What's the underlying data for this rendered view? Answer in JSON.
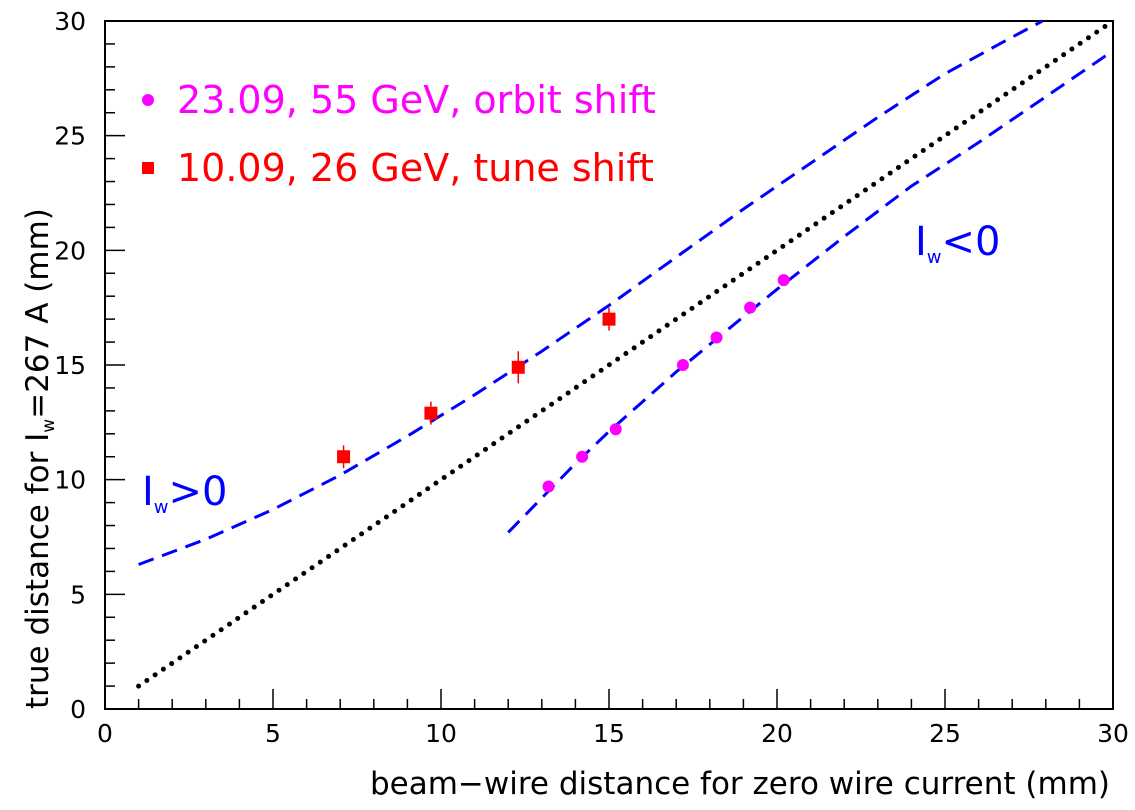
{
  "chart_data": {
    "type": "scatter",
    "xlim": [
      0,
      30
    ],
    "ylim": [
      0,
      30
    ],
    "xticks": [
      0,
      5,
      10,
      15,
      20,
      25,
      30
    ],
    "yticks": [
      0,
      5,
      10,
      15,
      20,
      25,
      30
    ],
    "x_minor_step": 1,
    "y_minor_step": 1,
    "grid": false,
    "legend_position": "top-left",
    "xlabel": "beam−wire distance for zero wire current (mm)",
    "ylabel": {
      "prefix": "true distance for I",
      "subscript": "w",
      "suffix": "=267 A (mm)"
    },
    "series": [
      {
        "name": "23.09, 55 GeV, orbit shift",
        "marker": "circle",
        "color": "#ff00ff",
        "points": [
          {
            "x": 13.2,
            "y": 9.7
          },
          {
            "x": 14.2,
            "y": 11.0
          },
          {
            "x": 15.2,
            "y": 12.2
          },
          {
            "x": 17.2,
            "y": 15.0
          },
          {
            "x": 18.2,
            "y": 16.2
          },
          {
            "x": 19.2,
            "y": 17.5
          },
          {
            "x": 20.2,
            "y": 18.7
          }
        ]
      },
      {
        "name": "10.09, 26 GeV, tune shift",
        "marker": "square",
        "color": "#ff0000",
        "points": [
          {
            "x": 7.1,
            "y": 11.0,
            "y_err": 0.5
          },
          {
            "x": 9.7,
            "y": 12.9,
            "y_err": 0.5
          },
          {
            "x": 12.3,
            "y": 14.9,
            "y_err": 0.7
          },
          {
            "x": 15.0,
            "y": 17.0,
            "y_err": 0.5
          }
        ]
      }
    ],
    "lines": [
      {
        "name": "diagonal",
        "style": "dotted",
        "color": "#000000",
        "points": [
          [
            1,
            1
          ],
          [
            30,
            30
          ]
        ]
      },
      {
        "name": "model-positive-current",
        "style": "dashed",
        "color": "#0000ff",
        "points": [
          [
            1,
            6.3
          ],
          [
            3,
            7.4
          ],
          [
            5,
            8.7
          ],
          [
            7,
            10.2
          ],
          [
            9,
            11.9
          ],
          [
            11,
            13.7
          ],
          [
            13,
            15.6
          ],
          [
            15,
            17.6
          ],
          [
            17,
            19.7
          ],
          [
            19,
            21.8
          ],
          [
            21,
            23.8
          ],
          [
            23,
            25.8
          ],
          [
            25,
            27.7
          ],
          [
            27,
            29.3
          ],
          [
            27.9,
            30
          ]
        ]
      },
      {
        "name": "model-negative-current",
        "style": "dashed",
        "color": "#0000ff",
        "points": [
          [
            12,
            7.7
          ],
          [
            13,
            9.2
          ],
          [
            14,
            10.7
          ],
          [
            15,
            12.1
          ],
          [
            16,
            13.4
          ],
          [
            17,
            14.7
          ],
          [
            18,
            15.9
          ],
          [
            19,
            17.1
          ],
          [
            20,
            18.3
          ],
          [
            22,
            20.6
          ],
          [
            24,
            22.8
          ],
          [
            26,
            24.7
          ],
          [
            28,
            26.7
          ],
          [
            30,
            28.7
          ]
        ]
      }
    ],
    "annotations": [
      {
        "name": "annotation-positive-current",
        "text_main": "I",
        "text_sub": "w",
        "text_rest": ">0",
        "x": 1.1,
        "y": 9.3,
        "color": "#0000ff"
      },
      {
        "name": "annotation-negative-current",
        "text_main": "I",
        "text_sub": "w",
        "text_rest": "<0",
        "x": 24.1,
        "y": 19.8,
        "color": "#0000ff"
      }
    ]
  }
}
